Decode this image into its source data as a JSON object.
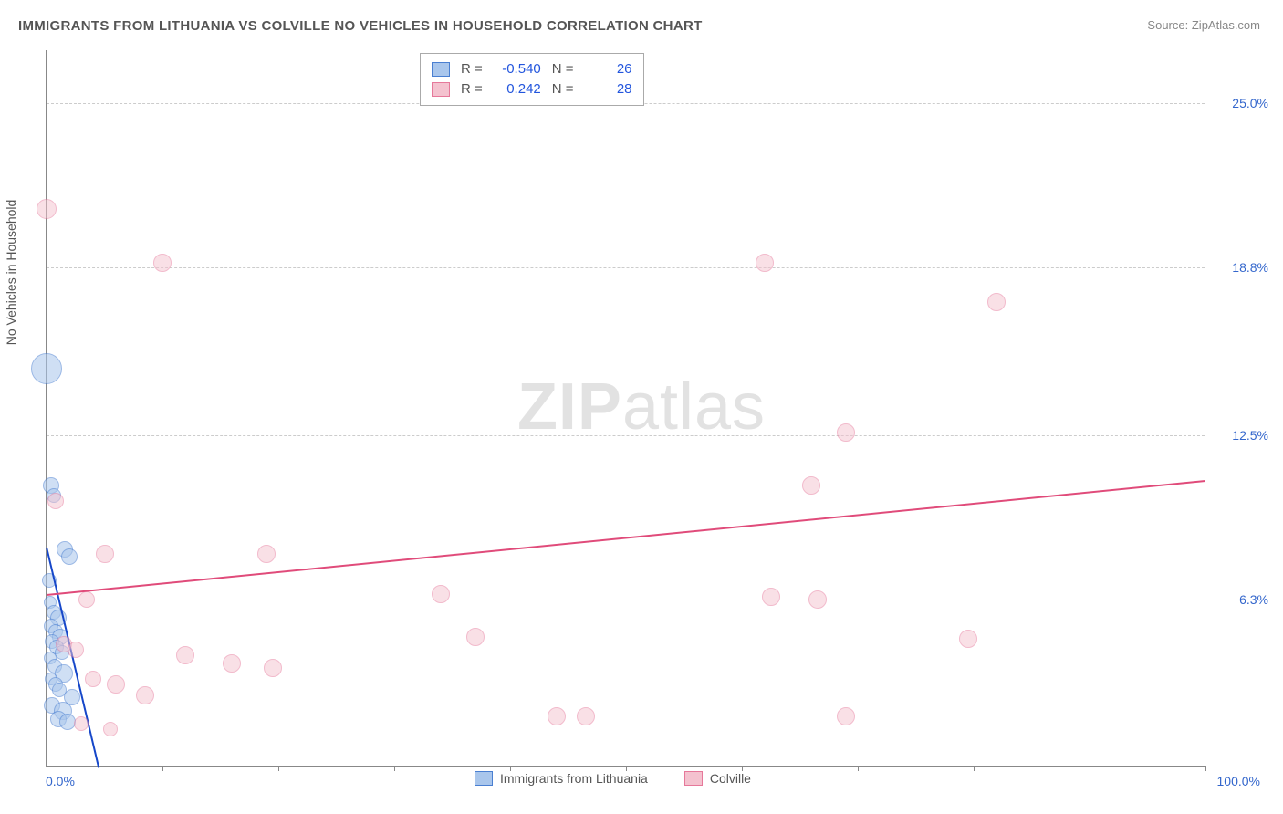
{
  "title": "IMMIGRANTS FROM LITHUANIA VS COLVILLE NO VEHICLES IN HOUSEHOLD CORRELATION CHART",
  "source_label": "Source:",
  "source_name": "ZipAtlas.com",
  "watermark_zip": "ZIP",
  "watermark_atlas": "atlas",
  "ylabel": "No Vehicles in Household",
  "xlabel_min": "0.0%",
  "xlabel_max": "100.0%",
  "chart": {
    "type": "scatter",
    "xlim": [
      0,
      100
    ],
    "ylim": [
      0,
      27
    ],
    "background_color": "#ffffff",
    "grid_color": "#cccccc",
    "axis_color": "#888888",
    "ytick_positions": [
      6.3,
      12.5,
      18.8,
      25.0
    ],
    "ytick_labels": [
      "6.3%",
      "12.5%",
      "18.8%",
      "25.0%"
    ],
    "ytick_color": "#3366cc",
    "xtick_positions": [
      0,
      10,
      20,
      30,
      40,
      50,
      60,
      70,
      80,
      90,
      100
    ],
    "series": [
      {
        "name": "Immigrants from Lithuania",
        "fill": "#a9c6ec",
        "stroke": "#4a7fd1",
        "fill_opacity": 0.55,
        "marker_radius": 9,
        "trend": {
          "x1": 0,
          "y1": 8.3,
          "x2": 4.5,
          "y2": 0,
          "color": "#1647c9",
          "width": 2.2
        },
        "points": [
          {
            "x": 0.0,
            "y": 15.0,
            "r": 17
          },
          {
            "x": 0.4,
            "y": 10.6,
            "r": 9
          },
          {
            "x": 0.6,
            "y": 10.2,
            "r": 8
          },
          {
            "x": 1.6,
            "y": 8.2,
            "r": 9
          },
          {
            "x": 2.0,
            "y": 7.9,
            "r": 9
          },
          {
            "x": 0.2,
            "y": 7.0,
            "r": 8
          },
          {
            "x": 0.3,
            "y": 6.2,
            "r": 7
          },
          {
            "x": 0.6,
            "y": 5.8,
            "r": 8
          },
          {
            "x": 1.0,
            "y": 5.6,
            "r": 9
          },
          {
            "x": 0.4,
            "y": 5.3,
            "r": 8
          },
          {
            "x": 0.8,
            "y": 5.1,
            "r": 8
          },
          {
            "x": 1.2,
            "y": 4.9,
            "r": 9
          },
          {
            "x": 0.5,
            "y": 4.7,
            "r": 8
          },
          {
            "x": 0.9,
            "y": 4.5,
            "r": 8
          },
          {
            "x": 1.3,
            "y": 4.3,
            "r": 8
          },
          {
            "x": 0.3,
            "y": 4.1,
            "r": 7
          },
          {
            "x": 0.7,
            "y": 3.8,
            "r": 8
          },
          {
            "x": 1.5,
            "y": 3.5,
            "r": 10
          },
          {
            "x": 0.4,
            "y": 3.3,
            "r": 7
          },
          {
            "x": 0.8,
            "y": 3.1,
            "r": 8
          },
          {
            "x": 1.1,
            "y": 2.9,
            "r": 8
          },
          {
            "x": 2.2,
            "y": 2.6,
            "r": 9
          },
          {
            "x": 0.5,
            "y": 2.3,
            "r": 9
          },
          {
            "x": 1.4,
            "y": 2.1,
            "r": 10
          },
          {
            "x": 1.0,
            "y": 1.8,
            "r": 9
          },
          {
            "x": 1.8,
            "y": 1.7,
            "r": 9
          }
        ]
      },
      {
        "name": "Colville",
        "fill": "#f4c2cf",
        "stroke": "#e6789a",
        "fill_opacity": 0.5,
        "marker_radius": 10,
        "trend": {
          "x1": 0,
          "y1": 6.5,
          "x2": 100,
          "y2": 10.8,
          "color": "#e04b7a",
          "width": 2
        },
        "points": [
          {
            "x": 0.0,
            "y": 21.0,
            "r": 11
          },
          {
            "x": 10.0,
            "y": 19.0,
            "r": 10
          },
          {
            "x": 62.0,
            "y": 19.0,
            "r": 10
          },
          {
            "x": 82.0,
            "y": 17.5,
            "r": 10
          },
          {
            "x": 69.0,
            "y": 12.6,
            "r": 10
          },
          {
            "x": 66.0,
            "y": 10.6,
            "r": 10
          },
          {
            "x": 0.8,
            "y": 10.0,
            "r": 9
          },
          {
            "x": 5.0,
            "y": 8.0,
            "r": 10
          },
          {
            "x": 19.0,
            "y": 8.0,
            "r": 10
          },
          {
            "x": 34.0,
            "y": 6.5,
            "r": 10
          },
          {
            "x": 3.5,
            "y": 6.3,
            "r": 9
          },
          {
            "x": 62.5,
            "y": 6.4,
            "r": 10
          },
          {
            "x": 66.5,
            "y": 6.3,
            "r": 10
          },
          {
            "x": 37.0,
            "y": 4.9,
            "r": 10
          },
          {
            "x": 79.5,
            "y": 4.8,
            "r": 10
          },
          {
            "x": 1.5,
            "y": 4.6,
            "r": 9
          },
          {
            "x": 2.5,
            "y": 4.4,
            "r": 9
          },
          {
            "x": 12.0,
            "y": 4.2,
            "r": 10
          },
          {
            "x": 16.0,
            "y": 3.9,
            "r": 10
          },
          {
            "x": 19.5,
            "y": 3.7,
            "r": 10
          },
          {
            "x": 4.0,
            "y": 3.3,
            "r": 9
          },
          {
            "x": 6.0,
            "y": 3.1,
            "r": 10
          },
          {
            "x": 8.5,
            "y": 2.7,
            "r": 10
          },
          {
            "x": 44.0,
            "y": 1.9,
            "r": 10
          },
          {
            "x": 46.5,
            "y": 1.9,
            "r": 10
          },
          {
            "x": 69.0,
            "y": 1.9,
            "r": 10
          },
          {
            "x": 3.0,
            "y": 1.6,
            "r": 8
          },
          {
            "x": 5.5,
            "y": 1.4,
            "r": 8
          }
        ]
      }
    ]
  },
  "stats": {
    "rows": [
      {
        "swatch_fill": "#a9c6ec",
        "swatch_stroke": "#4a7fd1",
        "r_label": "R =",
        "r_val": "-0.540",
        "n_label": "N =",
        "n_val": "26"
      },
      {
        "swatch_fill": "#f4c2cf",
        "swatch_stroke": "#e6789a",
        "r_label": "R =",
        "r_val": "0.242",
        "n_label": "N =",
        "n_val": "28"
      }
    ]
  },
  "legend": {
    "items": [
      {
        "swatch_fill": "#a9c6ec",
        "swatch_stroke": "#4a7fd1",
        "label": "Immigrants from Lithuania"
      },
      {
        "swatch_fill": "#f4c2cf",
        "swatch_stroke": "#e6789a",
        "label": "Colville"
      }
    ]
  }
}
